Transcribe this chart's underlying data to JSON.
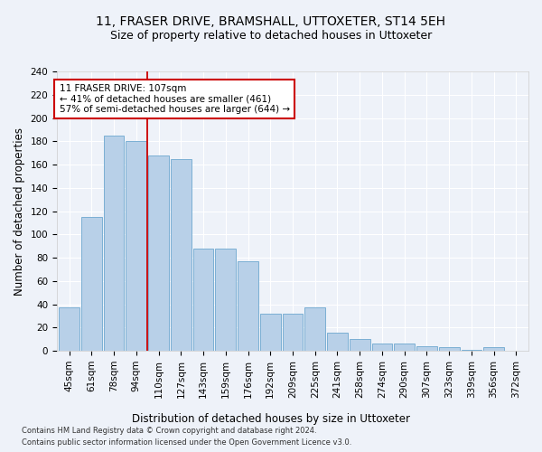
{
  "title1": "11, FRASER DRIVE, BRAMSHALL, UTTOXETER, ST14 5EH",
  "title2": "Size of property relative to detached houses in Uttoxeter",
  "xlabel": "Distribution of detached houses by size in Uttoxeter",
  "ylabel": "Number of detached properties",
  "categories": [
    "45sqm",
    "61sqm",
    "78sqm",
    "94sqm",
    "110sqm",
    "127sqm",
    "143sqm",
    "159sqm",
    "176sqm",
    "192sqm",
    "209sqm",
    "225sqm",
    "241sqm",
    "258sqm",
    "274sqm",
    "290sqm",
    "307sqm",
    "323sqm",
    "339sqm",
    "356sqm",
    "372sqm"
  ],
  "values": [
    37,
    115,
    185,
    180,
    168,
    165,
    88,
    88,
    77,
    32,
    32,
    37,
    16,
    10,
    6,
    6,
    4,
    3,
    1,
    3,
    0
  ],
  "bar_color": "#b8d0e8",
  "bar_edge_color": "#7bafd4",
  "red_line_x": 3.5,
  "annotation_text": "11 FRASER DRIVE: 107sqm\n← 41% of detached houses are smaller (461)\n57% of semi-detached houses are larger (644) →",
  "annotation_box_color": "#ffffff",
  "annotation_box_edge_color": "#cc0000",
  "footer1": "Contains HM Land Registry data © Crown copyright and database right 2024.",
  "footer2": "Contains public sector information licensed under the Open Government Licence v3.0.",
  "ylim": [
    0,
    240
  ],
  "yticks": [
    0,
    20,
    40,
    60,
    80,
    100,
    120,
    140,
    160,
    180,
    200,
    220,
    240
  ],
  "background_color": "#eef2f9",
  "grid_color": "#ffffff",
  "title1_fontsize": 10,
  "title2_fontsize": 9,
  "xlabel_fontsize": 8.5,
  "ylabel_fontsize": 8.5,
  "tick_fontsize": 7.5,
  "annotation_fontsize": 7.5,
  "footer_fontsize": 6.0
}
